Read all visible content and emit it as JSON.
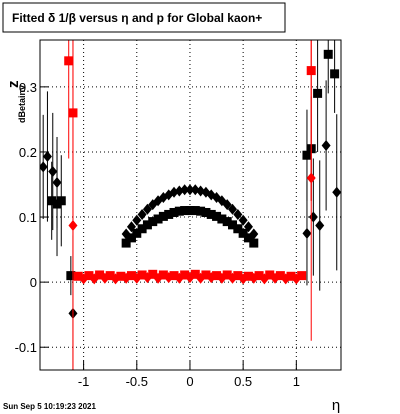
{
  "chart_data": {
    "type": "scatter",
    "title": "Fitted δ 1/β versus η and p for Global kaon+",
    "x_label": "η",
    "y_label": "z",
    "y_label_sub": "dBetainv",
    "timestamp": "Sun Sep  5 10:19:23 2021",
    "xlim": [
      -1.41,
      1.42
    ],
    "ylim": [
      -0.135,
      0.372
    ],
    "xticks": [
      -1,
      -0.5,
      0,
      0.5,
      1
    ],
    "yticks": [
      -0.1,
      0,
      0.1,
      0.2,
      0.3
    ],
    "grid": true,
    "series": [
      {
        "color": "#000000",
        "marker": "diamond",
        "x": [
          -1.38,
          -1.34,
          -1.29,
          -1.25,
          -1.1,
          -0.6,
          -0.55,
          -0.5,
          -0.45,
          -0.4,
          -0.35,
          -0.3,
          -0.25,
          -0.2,
          -0.15,
          -0.1,
          -0.05,
          0,
          0.05,
          0.1,
          0.15,
          0.2,
          0.25,
          0.3,
          0.35,
          0.4,
          0.45,
          0.5,
          0.55,
          0.6,
          1.1,
          1.16,
          1.22,
          1.28,
          1.38
        ],
        "values": [
          0.177,
          0.193,
          0.17,
          0.153,
          -0.048,
          0.074,
          0.085,
          0.095,
          0.104,
          0.112,
          0.119,
          0.125,
          0.13,
          0.134,
          0.138,
          0.14,
          0.142,
          0.142,
          0.142,
          0.14,
          0.138,
          0.134,
          0.13,
          0.125,
          0.119,
          0.112,
          0.104,
          0.095,
          0.085,
          0.074,
          0.075,
          0.1,
          0.087,
          0.21,
          0.138
        ],
        "errors": [
          0.08,
          0.1,
          0.09,
          0.07,
          0.12,
          0.004,
          0.003,
          0.003,
          0.003,
          0.003,
          0.003,
          0.003,
          0.003,
          0.003,
          0.003,
          0.003,
          0.003,
          0.003,
          0.003,
          0.003,
          0.003,
          0.003,
          0.003,
          0.003,
          0.003,
          0.003,
          0.003,
          0.003,
          0.003,
          0.004,
          0.08,
          0.09,
          0.1,
          0.1,
          0.12
        ]
      },
      {
        "color": "#000000",
        "marker": "square",
        "x": [
          -1.3,
          -1.25,
          -1.21,
          -1.12,
          -0.6,
          -0.55,
          -0.5,
          -0.45,
          -0.4,
          -0.35,
          -0.3,
          -0.25,
          -0.2,
          -0.15,
          -0.1,
          -0.05,
          0,
          0.05,
          0.1,
          0.15,
          0.2,
          0.25,
          0.3,
          0.35,
          0.4,
          0.45,
          0.5,
          0.55,
          0.6,
          1.1,
          1.14,
          1.2,
          1.3,
          1.36
        ],
        "values": [
          0.125,
          0.12,
          0.125,
          0.01,
          0.06,
          0.068,
          0.075,
          0.082,
          0.088,
          0.093,
          0.097,
          0.101,
          0.104,
          0.107,
          0.109,
          0.11,
          0.11,
          0.11,
          0.109,
          0.107,
          0.104,
          0.101,
          0.097,
          0.093,
          0.088,
          0.082,
          0.075,
          0.068,
          0.06,
          0.195,
          0.205,
          0.29,
          0.35,
          0.32
        ],
        "errors": [
          0.06,
          0.08,
          0.07,
          0.03,
          0.003,
          0.003,
          0.003,
          0.003,
          0.003,
          0.003,
          0.003,
          0.003,
          0.003,
          0.003,
          0.003,
          0.003,
          0.003,
          0.003,
          0.003,
          0.003,
          0.003,
          0.003,
          0.003,
          0.003,
          0.003,
          0.003,
          0.003,
          0.003,
          0.003,
          0.07,
          0.08,
          0.09,
          0.06,
          0.06
        ]
      },
      {
        "color": "#ff0000",
        "marker": "square",
        "x": [
          -1.14,
          -1.1,
          -1.05,
          -0.95,
          -0.85,
          -0.75,
          -0.65,
          -0.55,
          -0.45,
          -0.35,
          -0.25,
          -0.15,
          -0.05,
          0.05,
          0.15,
          0.25,
          0.35,
          0.45,
          0.55,
          0.65,
          0.75,
          0.85,
          0.95,
          1.05,
          1.14
        ],
        "values": [
          0.34,
          0.26,
          0.009,
          0.01,
          0.011,
          0.01,
          0.009,
          0.01,
          0.011,
          0.012,
          0.011,
          0.01,
          0.011,
          0.012,
          0.011,
          0.01,
          0.011,
          0.01,
          0.009,
          0.01,
          0.011,
          0.01,
          0.009,
          0.01,
          0.325
        ],
        "errors": [
          0.15,
          0.4,
          0.003,
          0.003,
          0.003,
          0.003,
          0.003,
          0.003,
          0.003,
          0.003,
          0.003,
          0.003,
          0.003,
          0.003,
          0.003,
          0.003,
          0.003,
          0.003,
          0.003,
          0.003,
          0.003,
          0.003,
          0.003,
          0.003,
          0.2
        ]
      },
      {
        "color": "#ff0000",
        "marker": "diamond",
        "x": [
          -1.1,
          -1.0,
          -0.9,
          -0.8,
          -0.7,
          -0.6,
          -0.5,
          -0.4,
          -0.3,
          -0.2,
          -0.1,
          0,
          0.1,
          0.2,
          0.3,
          0.4,
          0.5,
          0.6,
          0.7,
          0.8,
          0.9,
          1.0,
          1.14
        ],
        "values": [
          0.087,
          0.005,
          0.005,
          0.006,
          0.005,
          0.006,
          0.006,
          0.007,
          0.006,
          0.007,
          0.006,
          0.007,
          0.006,
          0.007,
          0.006,
          0.006,
          0.005,
          0.006,
          0.005,
          0.006,
          0.005,
          0.005,
          0.16
        ],
        "errors": [
          0.3,
          0.002,
          0.002,
          0.002,
          0.002,
          0.002,
          0.002,
          0.002,
          0.002,
          0.002,
          0.002,
          0.002,
          0.002,
          0.002,
          0.002,
          0.002,
          0.002,
          0.002,
          0.002,
          0.002,
          0.002,
          0.002,
          0.25
        ]
      }
    ]
  }
}
